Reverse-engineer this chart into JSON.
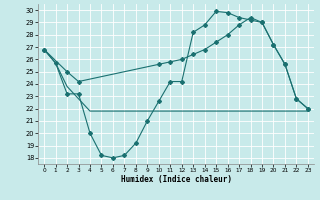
{
  "xlabel": "Humidex (Indice chaleur)",
  "bg_color": "#c8eaea",
  "line_color": "#1a7070",
  "grid_color": "#ffffff",
  "ylim": [
    17.5,
    30.5
  ],
  "xlim": [
    -0.5,
    23.5
  ],
  "yticks": [
    18,
    19,
    20,
    21,
    22,
    23,
    24,
    25,
    26,
    27,
    28,
    29,
    30
  ],
  "xticks": [
    0,
    1,
    2,
    3,
    4,
    5,
    6,
    7,
    8,
    9,
    10,
    11,
    12,
    13,
    14,
    15,
    16,
    17,
    18,
    19,
    20,
    21,
    22,
    23
  ],
  "curve1_x": [
    0,
    1,
    2,
    3,
    4,
    5,
    6,
    7,
    8,
    9,
    10,
    11,
    12,
    13,
    14,
    15,
    16,
    17,
    18,
    19,
    20,
    21,
    22,
    23
  ],
  "curve1_y": [
    26.8,
    25.7,
    23.2,
    23.2,
    20.0,
    18.2,
    18.0,
    18.2,
    19.2,
    21.0,
    22.6,
    24.2,
    24.2,
    28.2,
    28.8,
    29.9,
    29.8,
    29.4,
    29.2,
    29.0,
    27.2,
    25.6,
    22.8,
    22.0
  ],
  "curve2_x": [
    0,
    2,
    3,
    10,
    11,
    12,
    13,
    14,
    15,
    16,
    17,
    18,
    19,
    20,
    21,
    22,
    23
  ],
  "curve2_y": [
    26.8,
    25.0,
    24.2,
    25.6,
    25.8,
    26.0,
    26.4,
    26.8,
    27.4,
    28.0,
    28.8,
    29.4,
    29.0,
    27.2,
    25.6,
    22.8,
    22.0
  ],
  "curve3_x": [
    0,
    1,
    2,
    3,
    4,
    5,
    10,
    18,
    22,
    23
  ],
  "curve3_y": [
    26.8,
    25.7,
    23.8,
    22.8,
    21.8,
    21.8,
    21.8,
    21.8,
    21.8,
    21.8
  ]
}
